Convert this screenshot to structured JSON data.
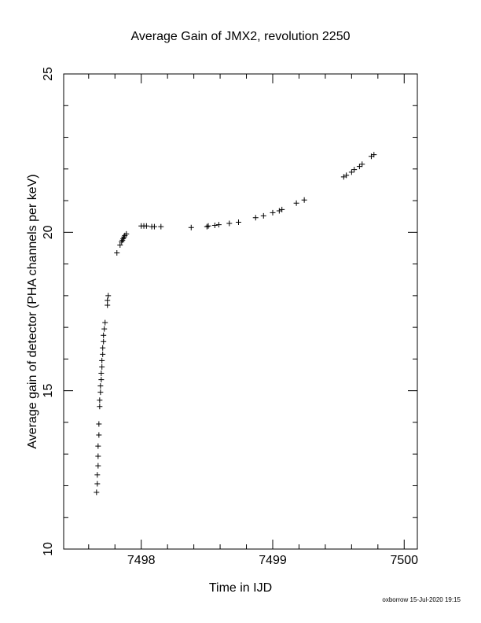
{
  "chart_data": {
    "type": "scatter",
    "title": "Average Gain of JMX2, revolution 2250",
    "x_label": "Time in IJD",
    "y_label": "Average gain of detector (PHA channels per keV)",
    "footer": "oxborrow 15-Jul-2020 19:15",
    "marker": "+",
    "color": "#000000",
    "xlim": [
      7497.41,
      7500.1
    ],
    "ylim": [
      10,
      25
    ],
    "xticks": [
      7498,
      7499,
      7500
    ],
    "yticks": [
      10,
      15,
      20,
      25
    ],
    "xminorticks": [
      7497.6,
      7497.8,
      7498.2,
      7498.4,
      7498.6,
      7498.8,
      7499.2,
      7499.4,
      7499.6,
      7499.8
    ],
    "yminorticks": [
      11,
      12,
      13,
      14,
      16,
      17,
      18,
      19,
      21,
      22,
      23,
      24
    ],
    "series": [
      {
        "name": "gain",
        "x": [
          7497.66,
          7497.666,
          7497.666,
          7497.672,
          7497.672,
          7497.672,
          7497.678,
          7497.678,
          7497.684,
          7497.684,
          7497.69,
          7497.69,
          7497.696,
          7497.696,
          7497.701,
          7497.701,
          7497.707,
          7497.707,
          7497.713,
          7497.713,
          7497.719,
          7497.725,
          7497.743,
          7497.743,
          7497.749,
          7497.815,
          7497.839,
          7497.851,
          7497.857,
          7497.863,
          7497.869,
          7497.875,
          7497.887,
          7498.0,
          7498.02,
          7498.04,
          7498.08,
          7498.1,
          7498.15,
          7498.38,
          7498.5,
          7498.51,
          7498.56,
          7498.59,
          7498.67,
          7498.74,
          7498.87,
          7498.93,
          7499.0,
          7499.05,
          7499.07,
          7499.18,
          7499.24,
          7499.54,
          7499.56,
          7499.6,
          7499.62,
          7499.66,
          7499.68,
          7499.75,
          7499.77
        ],
        "values": [
          11.79,
          12.06,
          12.34,
          12.63,
          12.93,
          13.25,
          13.6,
          13.95,
          14.5,
          14.7,
          14.95,
          15.15,
          15.35,
          15.55,
          15.75,
          15.95,
          16.15,
          16.35,
          16.55,
          16.75,
          16.95,
          17.15,
          17.7,
          17.85,
          18.0,
          19.35,
          19.6,
          19.7,
          19.75,
          19.8,
          19.85,
          19.9,
          19.95,
          20.2,
          20.2,
          20.2,
          20.18,
          20.18,
          20.18,
          20.15,
          20.18,
          20.2,
          20.22,
          20.24,
          20.28,
          20.32,
          20.46,
          20.52,
          20.62,
          20.68,
          20.72,
          20.92,
          21.02,
          21.75,
          21.8,
          21.9,
          21.98,
          22.08,
          22.15,
          22.4,
          22.45
        ]
      }
    ]
  }
}
